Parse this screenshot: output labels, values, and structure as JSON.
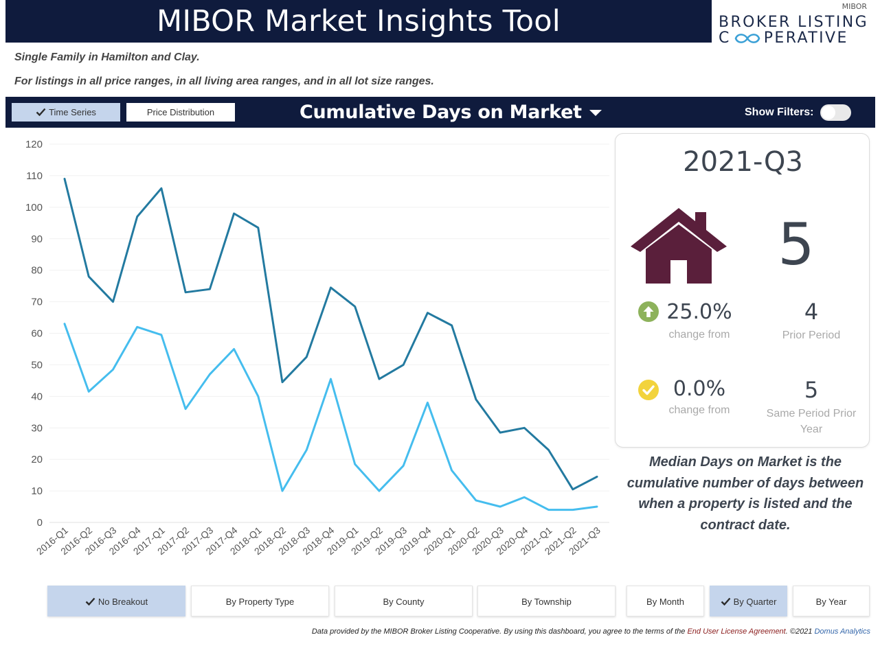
{
  "header": {
    "title": "MIBOR Market Insights Tool"
  },
  "logo": {
    "top_text": "MIBOR",
    "line1": "BROKER LISTING",
    "line2_left": "C",
    "line2_right": "PERATIVE"
  },
  "subtitle": {
    "line1": "Single Family in Hamilton and Clay.",
    "line2": "For listings in all price ranges, in all living area ranges, and in all lot size ranges."
  },
  "toolbar": {
    "time_series_label": "Time Series",
    "price_distribution_label": "Price Distribution",
    "metric_label": "Cumulative Days on Market",
    "show_filters_label": "Show Filters:",
    "show_filters_on": false
  },
  "chart_data": {
    "type": "line",
    "categories": [
      "2016-Q1",
      "2016-Q2",
      "2016-Q3",
      "2016-Q4",
      "2017-Q1",
      "2017-Q2",
      "2017-Q3",
      "2017-Q4",
      "2018-Q1",
      "2018-Q2",
      "2018-Q3",
      "2018-Q4",
      "2019-Q1",
      "2019-Q2",
      "2019-Q3",
      "2019-Q4",
      "2020-Q1",
      "2020-Q2",
      "2020-Q3",
      "2020-Q4",
      "2021-Q1",
      "2021-Q2",
      "2021-Q3"
    ],
    "series": [
      {
        "color": "#237aa0",
        "values": [
          109,
          78,
          70,
          97,
          106,
          73,
          74,
          98,
          93.5,
          44.5,
          52.5,
          74.5,
          68.5,
          45.5,
          50,
          66.5,
          62.5,
          39,
          28.5,
          30,
          23,
          10.5,
          14.5
        ]
      },
      {
        "color": "#45bdee",
        "values": [
          63,
          41.5,
          48.5,
          62,
          59.5,
          36,
          47,
          55,
          40,
          10,
          23,
          45.5,
          18.5,
          10,
          18,
          38,
          16.5,
          7,
          5,
          8,
          4,
          4,
          5
        ]
      }
    ],
    "ylim": [
      0,
      120
    ],
    "yticks": [
      0,
      10,
      20,
      30,
      40,
      50,
      60,
      70,
      80,
      90,
      100,
      110,
      120
    ],
    "grid": true,
    "title": "",
    "xlabel": "",
    "ylabel": ""
  },
  "kpi": {
    "period": "2021-Q3",
    "value": "5",
    "icon": "house-icon",
    "icon_color": "#5a1f3b",
    "change1": {
      "icon": "arrow-up-circle-icon",
      "color": "#8db25b",
      "pct": "25.0%",
      "label": "change from"
    },
    "compare1": {
      "value": "4",
      "label": "Prior Period"
    },
    "change2": {
      "icon": "check-circle-icon",
      "color": "#f2d33d",
      "pct": "0.0%",
      "label": "change from"
    },
    "compare2": {
      "value": "5",
      "label": "Same Period Prior Year"
    }
  },
  "definition": "Median Days on Market is the cumulative number of days between when a property is listed and the contract date.",
  "breakout": {
    "no_breakout": "No Breakout",
    "property_type": "By Property Type",
    "county": "By County",
    "township": "By Township"
  },
  "period_buttons": {
    "month": "By Month",
    "quarter": "By Quarter",
    "year": "By Year"
  },
  "footer": {
    "text": "Data provided by the MIBOR Broker Listing Cooperative.  By using this dashboard, you agree to the terms of the ",
    "link": "End User License Agreement",
    "suffix": ".  ©2021 ",
    "brand": "Domus Analytics"
  }
}
